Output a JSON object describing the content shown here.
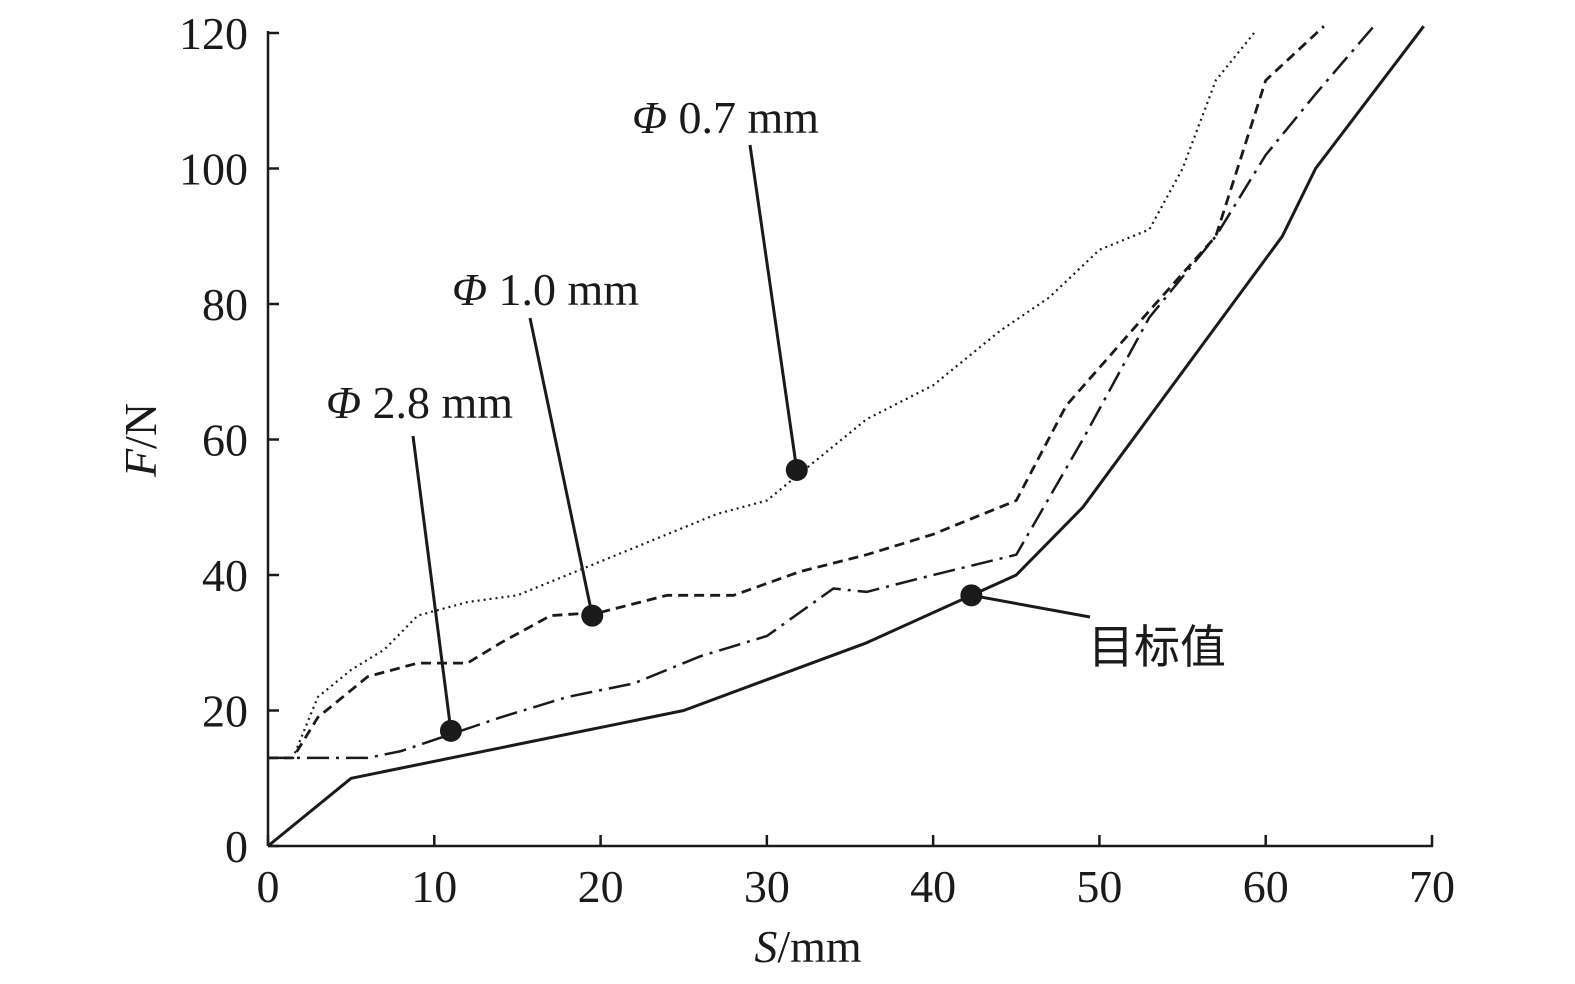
{
  "chart_data": {
    "type": "line",
    "xlabel": {
      "italic": "S",
      "rest": "/mm"
    },
    "ylabel": {
      "italic": "F",
      "rest": "/N"
    },
    "xlim": [
      0,
      70
    ],
    "ylim": [
      0,
      120
    ],
    "xticks": [
      0,
      10,
      20,
      30,
      40,
      50,
      60,
      70
    ],
    "yticks": [
      0,
      20,
      40,
      60,
      80,
      100,
      120
    ],
    "grid": false,
    "series": [
      {
        "key": "target",
        "style": "solid",
        "x": [
          0,
          5,
          15,
          25,
          36,
          45,
          49,
          61,
          63,
          69.5
        ],
        "y": [
          0,
          10,
          15,
          20,
          30,
          40,
          50,
          90,
          100,
          121
        ]
      },
      {
        "key": "d28",
        "style": "dashdot",
        "x": [
          0,
          1.5,
          6,
          8,
          11,
          14,
          18,
          22,
          26,
          30,
          34,
          36,
          40,
          45,
          49,
          53,
          57,
          60,
          63,
          66.5
        ],
        "y": [
          13,
          13,
          13,
          14,
          16.5,
          19,
          22,
          24,
          28,
          31,
          38,
          37.5,
          40,
          43,
          60,
          78,
          90,
          102,
          111,
          121
        ]
      },
      {
        "key": "d10",
        "style": "dashed",
        "x": [
          0,
          1.5,
          3,
          6,
          9,
          12,
          14,
          17,
          20,
          24,
          28,
          32,
          36,
          40,
          45,
          48,
          53,
          57,
          60,
          63.5
        ],
        "y": [
          13,
          13,
          19,
          25,
          27,
          27,
          30,
          34,
          34.5,
          37,
          37,
          40.5,
          43,
          46,
          51,
          65,
          79,
          90,
          113,
          121
        ]
      },
      {
        "key": "d07",
        "style": "dotted",
        "x": [
          0,
          1.5,
          3,
          5,
          7,
          9,
          12,
          15,
          18,
          21,
          24,
          27,
          30,
          32,
          36,
          40,
          44,
          47,
          50,
          53,
          55,
          57,
          59.3
        ],
        "y": [
          13,
          13,
          22,
          26,
          29,
          34,
          36,
          37,
          40,
          43,
          46,
          49,
          51,
          55,
          63,
          68,
          76,
          81,
          88,
          91,
          100,
          113,
          120
        ]
      }
    ],
    "annotations": [
      {
        "key": "d07",
        "label": "Φ 0.7 mm",
        "label_prefix": "Φ",
        "label_rest": " 0.7 mm",
        "point": [
          31.8,
          55.5
        ]
      },
      {
        "key": "d10",
        "label": "Φ 1.0 mm",
        "label_prefix": "Φ",
        "label_rest": " 1.0 mm",
        "point": [
          19.5,
          34
        ]
      },
      {
        "key": "d28",
        "label": "Φ 2.8 mm",
        "label_prefix": "Φ",
        "label_rest": " 2.8 mm",
        "point": [
          11,
          17
        ]
      },
      {
        "key": "target",
        "label": "目标值",
        "label_prefix": "",
        "label_rest": "目标值",
        "point": [
          42.3,
          37
        ]
      }
    ],
    "colors": {
      "ink": "#1a1a1a",
      "background": "#ffffff"
    }
  }
}
